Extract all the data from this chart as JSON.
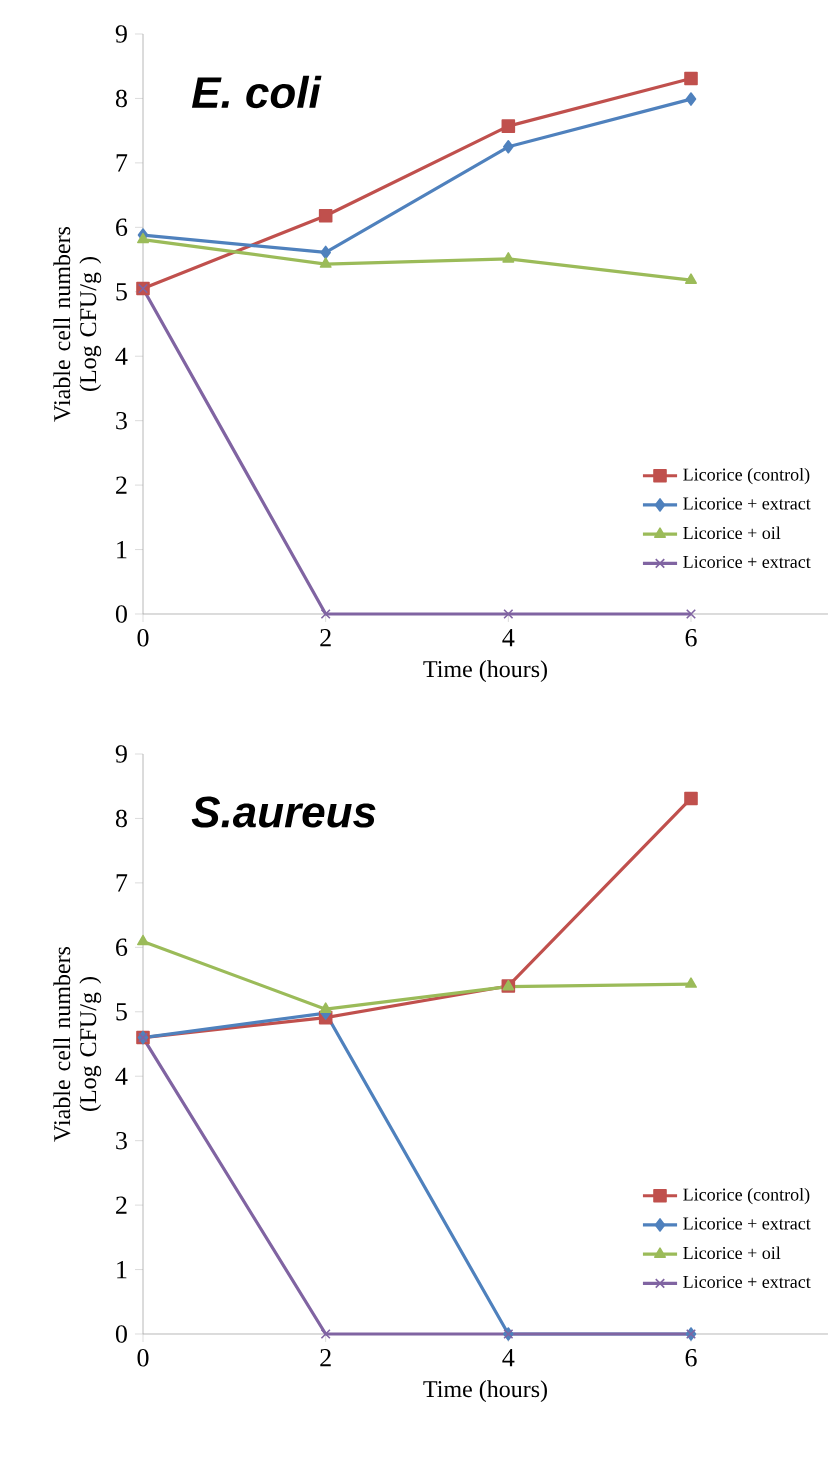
{
  "chart_data": [
    {
      "type": "line",
      "title": "E. coli",
      "xlabel": "Time (hours)",
      "ylabel": "Viable cell numbers (Log CFU/g )",
      "x": [
        0,
        2,
        4,
        6
      ],
      "xlim": [
        0,
        7.5
      ],
      "xticks": [
        0,
        2,
        4,
        6
      ],
      "ylim": [
        0,
        9
      ],
      "yticks": [
        0,
        1,
        2,
        3,
        4,
        5,
        6,
        7,
        8,
        9
      ],
      "grid": false,
      "legend": "bottom right",
      "line_style": "solid",
      "series": [
        {
          "name": "Licorice (control)",
          "color": "#c0504d",
          "marker": "square",
          "values": [
            5.05,
            6.18,
            7.57,
            8.31
          ]
        },
        {
          "name": "Licorice + extract",
          "color": "#4f81bd",
          "marker": "diamond",
          "values": [
            5.88,
            5.61,
            7.25,
            7.99
          ]
        },
        {
          "name": "Licorice + oil",
          "color": "#9bbb59",
          "marker": "triangle",
          "values": [
            5.81,
            5.43,
            5.51,
            5.18
          ]
        },
        {
          "name": "Licorice + extract",
          "color": "#8064a2",
          "marker": "cross",
          "values": [
            5.05,
            0,
            0,
            0
          ]
        }
      ]
    },
    {
      "type": "line",
      "title": "S.aureus",
      "xlabel": "Time (hours)",
      "ylabel": "Viable cell numbers (Log CFU/g )",
      "x": [
        0,
        2,
        4,
        6
      ],
      "xlim": [
        0,
        7.5
      ],
      "xticks": [
        0,
        2,
        4,
        6
      ],
      "ylim": [
        0,
        9
      ],
      "yticks": [
        0,
        1,
        2,
        3,
        4,
        5,
        6,
        7,
        8,
        9
      ],
      "grid": false,
      "legend": "bottom right",
      "line_style": "solid",
      "series": [
        {
          "name": "Licorice (control)",
          "color": "#c0504d",
          "marker": "square",
          "values": [
            4.6,
            4.91,
            5.4,
            8.31
          ]
        },
        {
          "name": "Licorice + extract",
          "color": "#4f81bd",
          "marker": "diamond",
          "values": [
            4.6,
            4.98,
            0,
            0
          ]
        },
        {
          "name": "Licorice + oil",
          "color": "#9bbb59",
          "marker": "triangle",
          "values": [
            6.09,
            5.04,
            5.39,
            5.43
          ]
        },
        {
          "name": "Licorice + extract",
          "color": "#8064a2",
          "marker": "cross",
          "values": [
            4.6,
            0,
            0,
            0
          ]
        }
      ]
    }
  ]
}
